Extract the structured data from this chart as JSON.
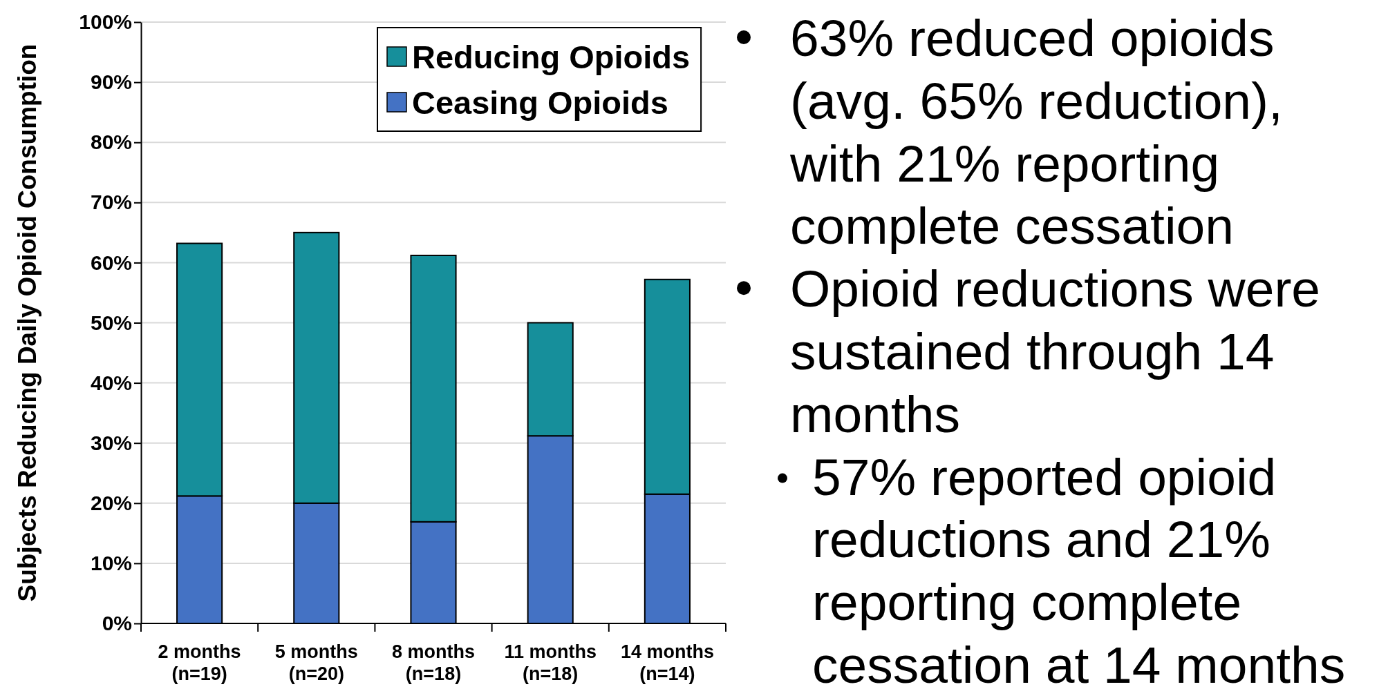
{
  "chart_data": {
    "type": "bar",
    "stacked": true,
    "ylabel": "Subjects Reducing Daily Opioid Consumption",
    "categories": [
      "2 months\n(n=19)",
      "5 months\n(n=20)",
      "8 months\n(n=18)",
      "11 months\n(n=18)",
      "14 months\n(n=14)"
    ],
    "series": [
      {
        "name": "Ceasing Opioids",
        "color": "#4472c4",
        "values": [
          21.2,
          20,
          16.9,
          31.2,
          21.5
        ]
      },
      {
        "name": "Reducing Opioids",
        "color": "#168f9b",
        "values": [
          42,
          45,
          44.3,
          18.8,
          35.7
        ]
      }
    ],
    "ylim": [
      0,
      100
    ],
    "yticks": [
      {
        "value": 0,
        "label": "0%"
      },
      {
        "value": 10,
        "label": "10%"
      },
      {
        "value": 20,
        "label": "20%"
      },
      {
        "value": 30,
        "label": "30%"
      },
      {
        "value": 40,
        "label": "40%"
      },
      {
        "value": 50,
        "label": "50%"
      },
      {
        "value": 60,
        "label": "60%"
      },
      {
        "value": 70,
        "label": "70%"
      },
      {
        "value": 80,
        "label": "80%"
      },
      {
        "value": 90,
        "label": "90%"
      },
      {
        "value": 100,
        "label": "100%"
      }
    ],
    "grid": "y",
    "legend": "top right",
    "annotations": [
      "63% reduced opioids (avg. 65% reduction), with 21% reporting complete cessation",
      "Opioid reductions were sustained through 14 months",
      "57% reported opioid reductions and 21% reporting complete cessation at 14 months"
    ]
  }
}
